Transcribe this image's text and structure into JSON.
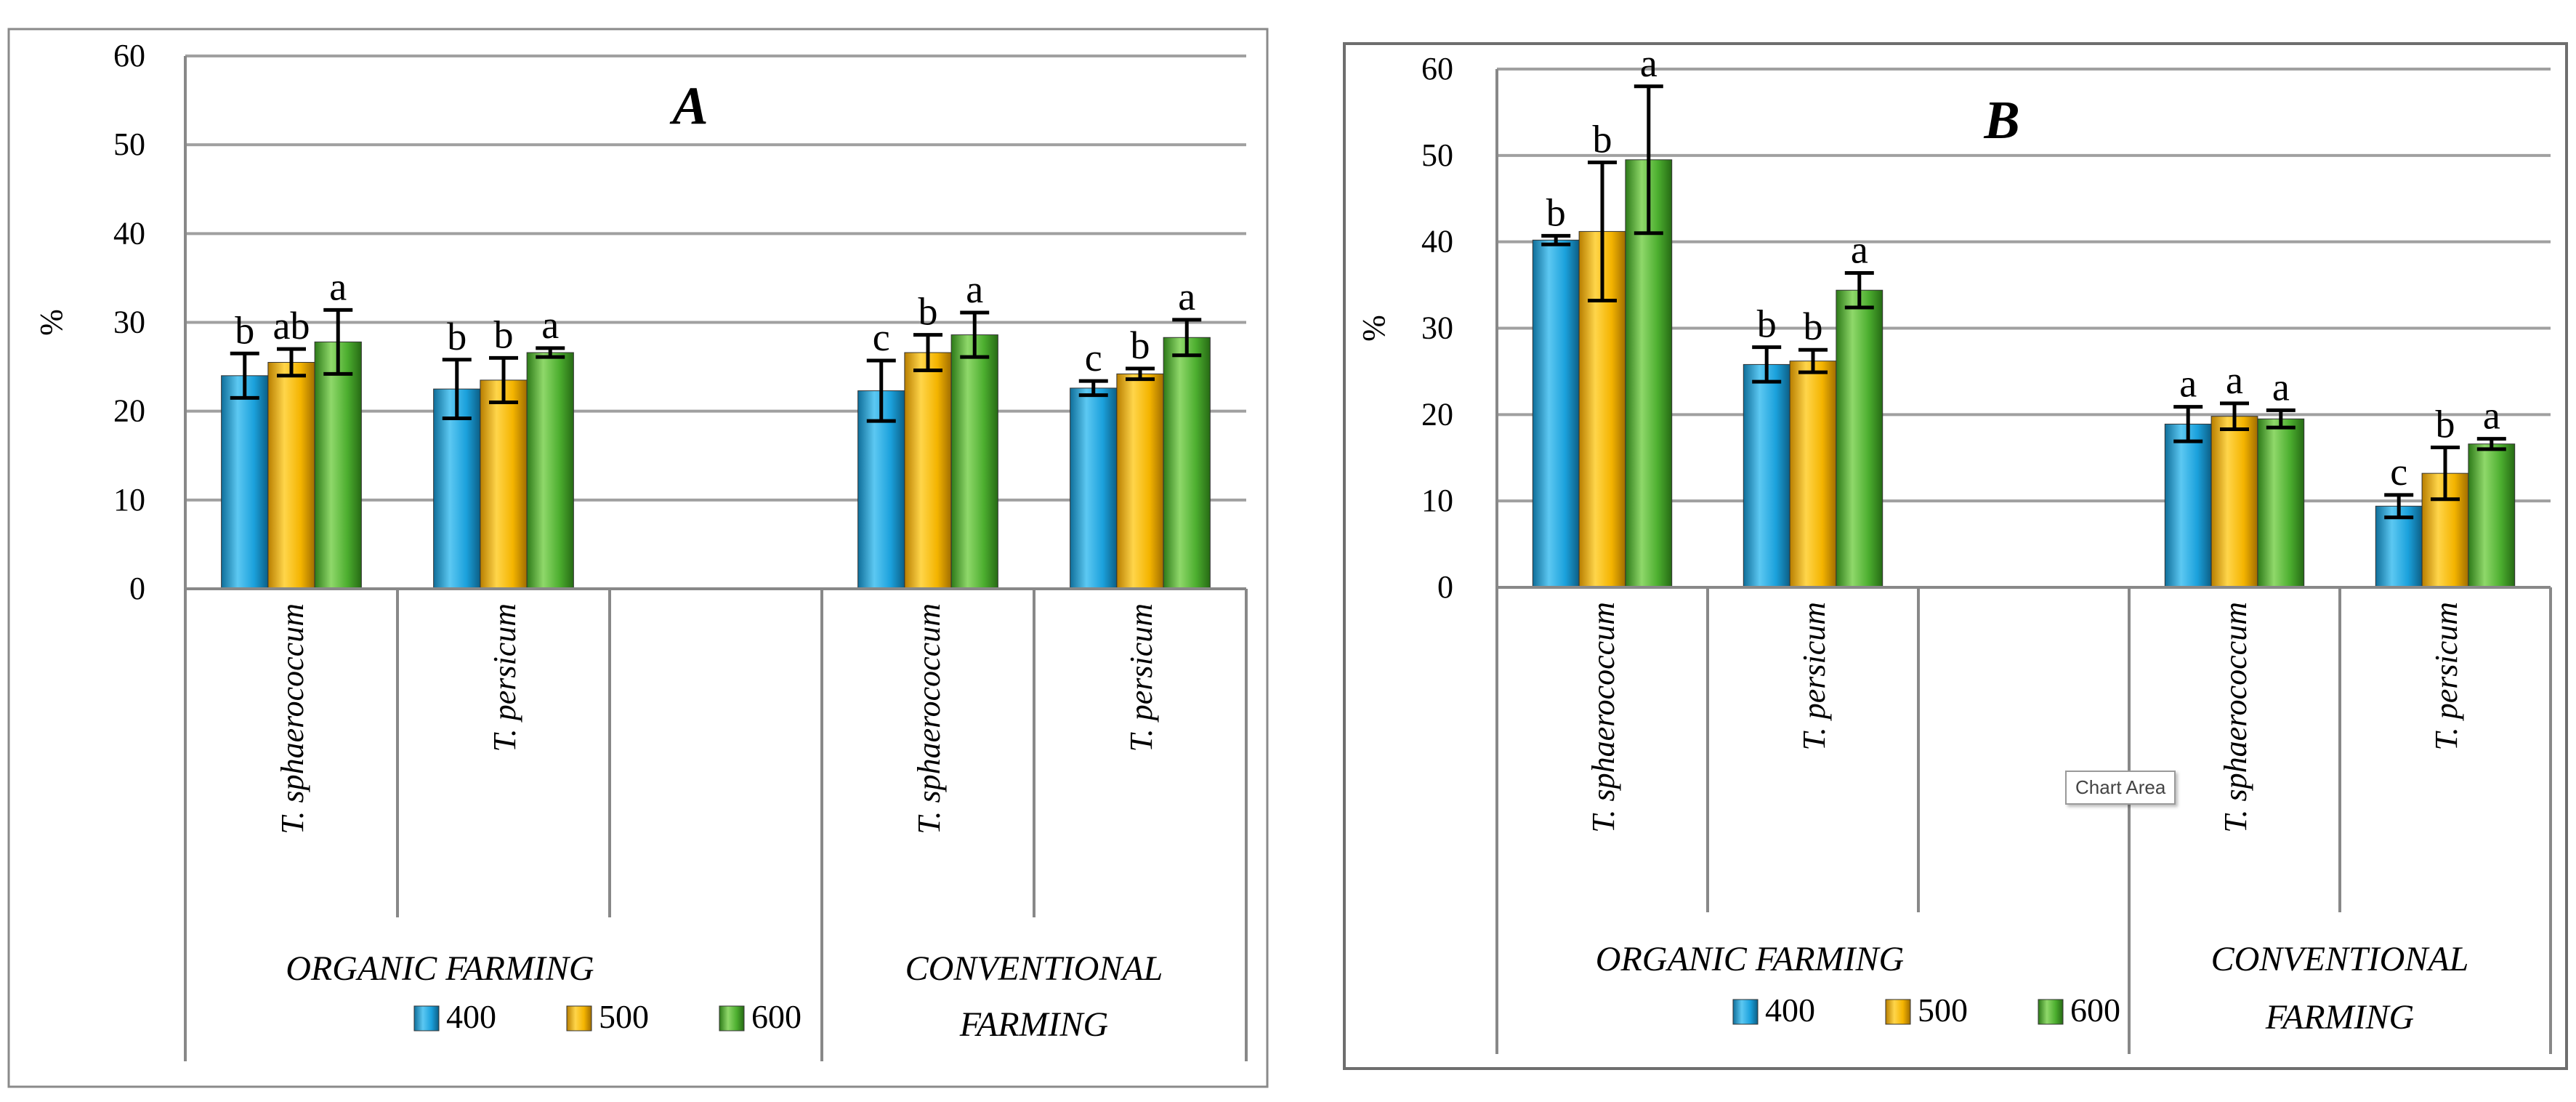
{
  "chart_data": [
    {
      "type": "bar",
      "title": "A",
      "ylabel": "%",
      "ylim": [
        0,
        60
      ],
      "yticks": [
        0,
        10,
        20,
        30,
        40,
        50,
        60
      ],
      "grid": true,
      "groups": [
        {
          "name": "ORGANIC FARMING",
          "categories": [
            "T. sphaerococcum",
            "T. persicum",
            ""
          ]
        },
        {
          "name": "CONVENTIONAL FARMING",
          "categories": [
            "T. sphaerococcum",
            "T. persicum"
          ]
        }
      ],
      "series": [
        {
          "name": "400",
          "values": [
            24,
            22.5,
            null,
            22.3,
            22.6
          ],
          "errors": [
            2.5,
            3.3,
            null,
            3.4,
            0.8
          ],
          "letters": [
            "b",
            "b",
            null,
            "c",
            "c"
          ]
        },
        {
          "name": "500",
          "values": [
            25.5,
            23.5,
            null,
            26.6,
            24.2
          ],
          "errors": [
            1.5,
            2.5,
            null,
            2.0,
            0.6
          ],
          "letters": [
            "ab",
            "b",
            null,
            "b",
            "b"
          ]
        },
        {
          "name": "600",
          "values": [
            27.8,
            26.6,
            null,
            28.6,
            28.3
          ],
          "errors": [
            3.6,
            0.5,
            null,
            2.5,
            2.0
          ],
          "letters": [
            "a",
            "a",
            null,
            "a",
            "a"
          ]
        }
      ],
      "legend": "bottom"
    },
    {
      "type": "bar",
      "title": "B",
      "ylabel": "%",
      "ylim": [
        0,
        60
      ],
      "yticks": [
        0,
        10,
        20,
        30,
        40,
        50,
        60
      ],
      "grid": true,
      "groups": [
        {
          "name": "ORGANIC FARMING",
          "categories": [
            "T. sphaerococcum",
            "T. persicum",
            ""
          ]
        },
        {
          "name": "CONVENTIONAL FARMING",
          "categories": [
            "T. sphaerococcum",
            "T. persicum"
          ]
        }
      ],
      "series": [
        {
          "name": "400",
          "values": [
            40.2,
            25.8,
            null,
            18.9,
            9.4
          ],
          "errors": [
            0.5,
            2.0,
            null,
            2.0,
            1.3
          ],
          "letters": [
            "b",
            "b",
            null,
            "a",
            "c"
          ]
        },
        {
          "name": "500",
          "values": [
            41.2,
            26.2,
            null,
            19.8,
            13.2
          ],
          "errors": [
            8.0,
            1.3,
            null,
            1.5,
            3.0
          ],
          "letters": [
            "b",
            "b",
            null,
            "a",
            "b"
          ]
        },
        {
          "name": "600",
          "values": [
            49.5,
            34.4,
            null,
            19.5,
            16.6
          ],
          "errors": [
            8.5,
            2.0,
            null,
            1.0,
            0.6
          ],
          "letters": [
            "a",
            "a",
            null,
            "a",
            "a"
          ]
        }
      ],
      "legend": "bottom"
    }
  ],
  "colors": {
    "400": "#1ba1dc",
    "500": "#f4b400",
    "600": "#4cae2f",
    "grid": "#a0a0a0",
    "axis": "#888888"
  },
  "tooltip": {
    "text": "Chart Area"
  }
}
